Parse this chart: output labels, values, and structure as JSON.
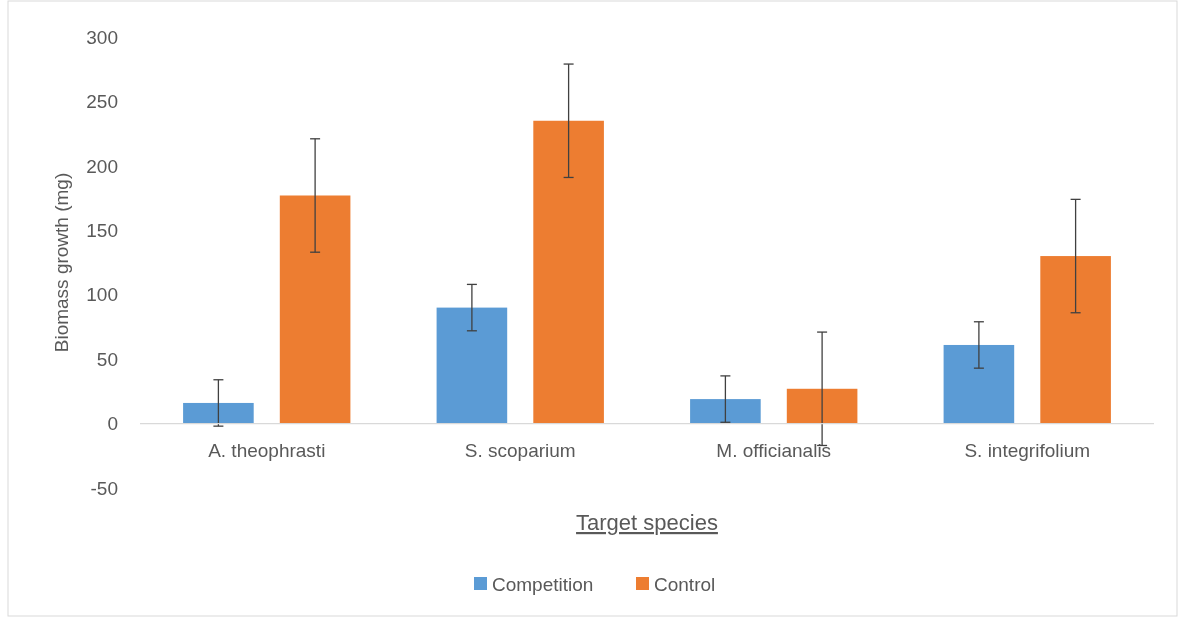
{
  "chart_data": {
    "type": "bar",
    "xlabel": "Target species",
    "ylabel": "Biomass growth (mg)",
    "categories": [
      "A. theophrasti",
      "S. scoparium",
      "M. officianalis",
      "S. integrifolium"
    ],
    "series": [
      {
        "name": "Competition",
        "color": "#5b9bd5",
        "values": [
          16,
          90,
          19,
          61
        ],
        "errors": [
          18,
          18,
          18,
          18
        ]
      },
      {
        "name": "Control",
        "color": "#ed7d31",
        "values": [
          177,
          235,
          27,
          130
        ],
        "errors": [
          44,
          44,
          44,
          44
        ]
      }
    ],
    "ylim": [
      -50,
      300
    ],
    "yticks": [
      -50,
      0,
      50,
      100,
      150,
      200,
      250,
      300
    ],
    "grid": false,
    "legend": "bottom"
  }
}
